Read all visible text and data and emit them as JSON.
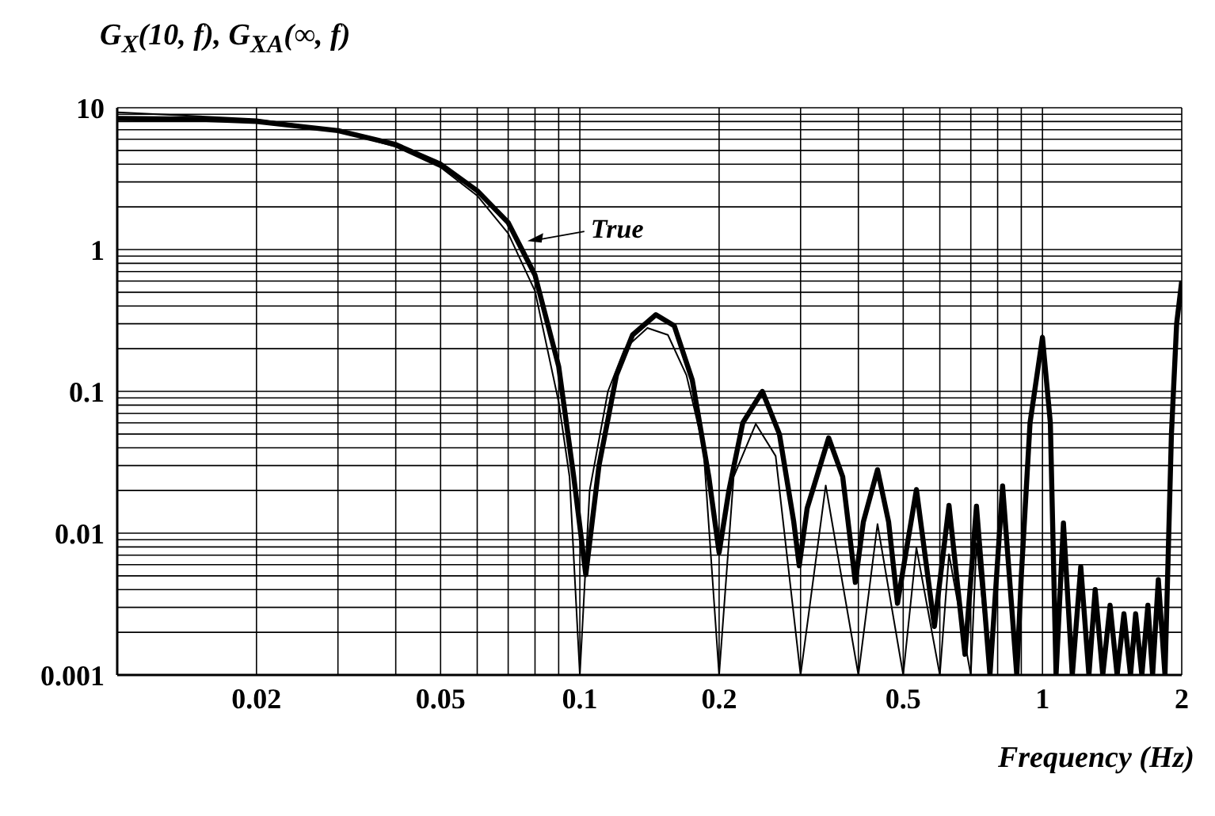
{
  "chart_data": {
    "type": "line",
    "ylabel": "G$_{X}$(10, f), G$_{XA}$(∞, f)",
    "xlabel": "Frequency (Hz)",
    "log": "xy",
    "grid": true,
    "legend": false,
    "marker": "none",
    "line_style": "solid",
    "xlim": [
      0.01,
      2
    ],
    "ylim": [
      0.001,
      10
    ],
    "xticks": [
      {
        "value": 0.01,
        "label": null
      },
      0.02,
      {
        "value": 0.03,
        "label": null
      },
      {
        "value": 0.04,
        "label": null
      },
      0.05,
      {
        "value": 0.06,
        "label": null
      },
      {
        "value": 0.07,
        "label": null
      },
      {
        "value": 0.08,
        "label": null
      },
      {
        "value": 0.09,
        "label": null
      },
      0.1,
      0.2,
      {
        "value": 0.3,
        "label": null
      },
      {
        "value": 0.4,
        "label": null
      },
      0.5,
      {
        "value": 0.6,
        "label": null
      },
      {
        "value": 0.7,
        "label": null
      },
      {
        "value": 0.8,
        "label": null
      },
      {
        "value": 0.9,
        "label": null
      },
      1,
      2
    ],
    "yticks": [
      0.001,
      {
        "value": 0.002,
        "label": null
      },
      {
        "value": 0.003,
        "label": null
      },
      {
        "value": 0.004,
        "label": null
      },
      {
        "value": 0.005,
        "label": null
      },
      {
        "value": 0.006,
        "label": null
      },
      {
        "value": 0.007,
        "label": null
      },
      {
        "value": 0.008,
        "label": null
      },
      {
        "value": 0.009,
        "label": null
      },
      0.01,
      {
        "value": 0.02,
        "label": null
      },
      {
        "value": 0.03,
        "label": null
      },
      {
        "value": 0.04,
        "label": null
      },
      {
        "value": 0.05,
        "label": null
      },
      {
        "value": 0.06,
        "label": null
      },
      {
        "value": 0.07,
        "label": null
      },
      {
        "value": 0.08,
        "label": null
      },
      {
        "value": 0.09,
        "label": null
      },
      0.1,
      {
        "value": 0.2,
        "label": null
      },
      {
        "value": 0.3,
        "label": null
      },
      {
        "value": 0.4,
        "label": null
      },
      {
        "value": 0.5,
        "label": null
      },
      {
        "value": 0.6,
        "label": null
      },
      {
        "value": 0.7,
        "label": null
      },
      {
        "value": 0.8,
        "label": null
      },
      {
        "value": 0.9,
        "label": null
      },
      1,
      {
        "value": 2,
        "label": null
      },
      {
        "value": 3,
        "label": null
      },
      {
        "value": 4,
        "label": null
      },
      {
        "value": 5,
        "label": null
      },
      {
        "value": 6,
        "label": null
      },
      {
        "value": 7,
        "label": null
      },
      {
        "value": 8,
        "label": null
      },
      {
        "value": 9,
        "label": null
      },
      10
    ],
    "annotations": [
      {
        "text": "True",
        "x": 0.077,
        "y": 1.15
      }
    ],
    "series": [
      {
        "color": "#000000",
        "x": [
          0.01,
          0.015,
          0.02,
          0.03,
          0.04,
          0.05,
          0.06,
          0.07,
          0.08,
          0.09,
          0.097,
          0.103,
          0.11,
          0.12,
          0.13,
          0.146,
          0.16,
          0.175,
          0.19,
          0.2,
          0.21,
          0.225,
          0.248,
          0.27,
          0.29,
          0.298,
          0.31,
          0.345,
          0.37,
          0.394,
          0.41,
          0.44,
          0.465,
          0.486,
          0.534,
          0.584,
          0.628,
          0.68,
          0.72,
          0.77,
          0.82,
          0.88,
          0.9,
          0.94,
          1,
          1.04,
          1.07,
          1.11,
          1.16,
          1.21,
          1.26,
          1.3,
          1.35,
          1.4,
          1.45,
          1.5,
          1.55,
          1.59,
          1.64,
          1.69,
          1.73,
          1.78,
          1.84,
          1.9,
          1.95,
          2
        ],
        "values": [
          8.4,
          8.3,
          8,
          6.9,
          5.5,
          4,
          2.6,
          1.55,
          0.66,
          0.15,
          0.025,
          0.0051,
          0.03,
          0.13,
          0.25,
          0.347,
          0.29,
          0.12,
          0.025,
          0.0073,
          0.02,
          0.06,
          0.1,
          0.05,
          0.012,
          0.0059,
          0.015,
          0.047,
          0.025,
          0.0045,
          0.012,
          0.028,
          0.012,
          0.0032,
          0.0203,
          0.0022,
          0.0157,
          0.0014,
          0.0155,
          0.001,
          0.0215,
          0.001,
          0.005,
          0.06,
          0.24,
          0.06,
          0.001,
          0.0118,
          0.001,
          0.0058,
          0.001,
          0.004,
          0.001,
          0.0031,
          0.001,
          0.0027,
          0.001,
          0.0027,
          0.001,
          0.0031,
          0.001,
          0.0047,
          0.001,
          0.05,
          0.3,
          0.6
        ]
      },
      {
        "color": "#000000",
        "x": [
          0.01,
          0.02,
          0.03,
          0.04,
          0.05,
          0.06,
          0.07,
          0.08,
          0.09,
          0.095,
          0.1,
          0.105,
          0.115,
          0.125,
          0.14,
          0.155,
          0.17,
          0.185,
          0.2,
          0.215,
          0.24,
          0.265,
          0.3,
          0.34,
          0.4,
          0.44,
          0.5,
          0.534,
          0.6,
          0.628,
          0.7,
          0.72,
          0.77,
          0.82,
          0.88,
          0.94,
          1,
          1.04,
          1.07
        ],
        "values": [
          9.3,
          8.3,
          6.9,
          5.3,
          3.8,
          2.4,
          1.3,
          0.51,
          0.084,
          0.025,
          0.001,
          0.02,
          0.1,
          0.2,
          0.28,
          0.25,
          0.13,
          0.04,
          0.001,
          0.025,
          0.059,
          0.035,
          0.001,
          0.0217,
          0.001,
          0.0116,
          0.001,
          0.0079,
          0.001,
          0.0071,
          0.001,
          0.0085,
          0.001,
          0.018,
          0.001,
          0.06,
          0.25,
          0.06,
          0.001
        ]
      }
    ]
  }
}
